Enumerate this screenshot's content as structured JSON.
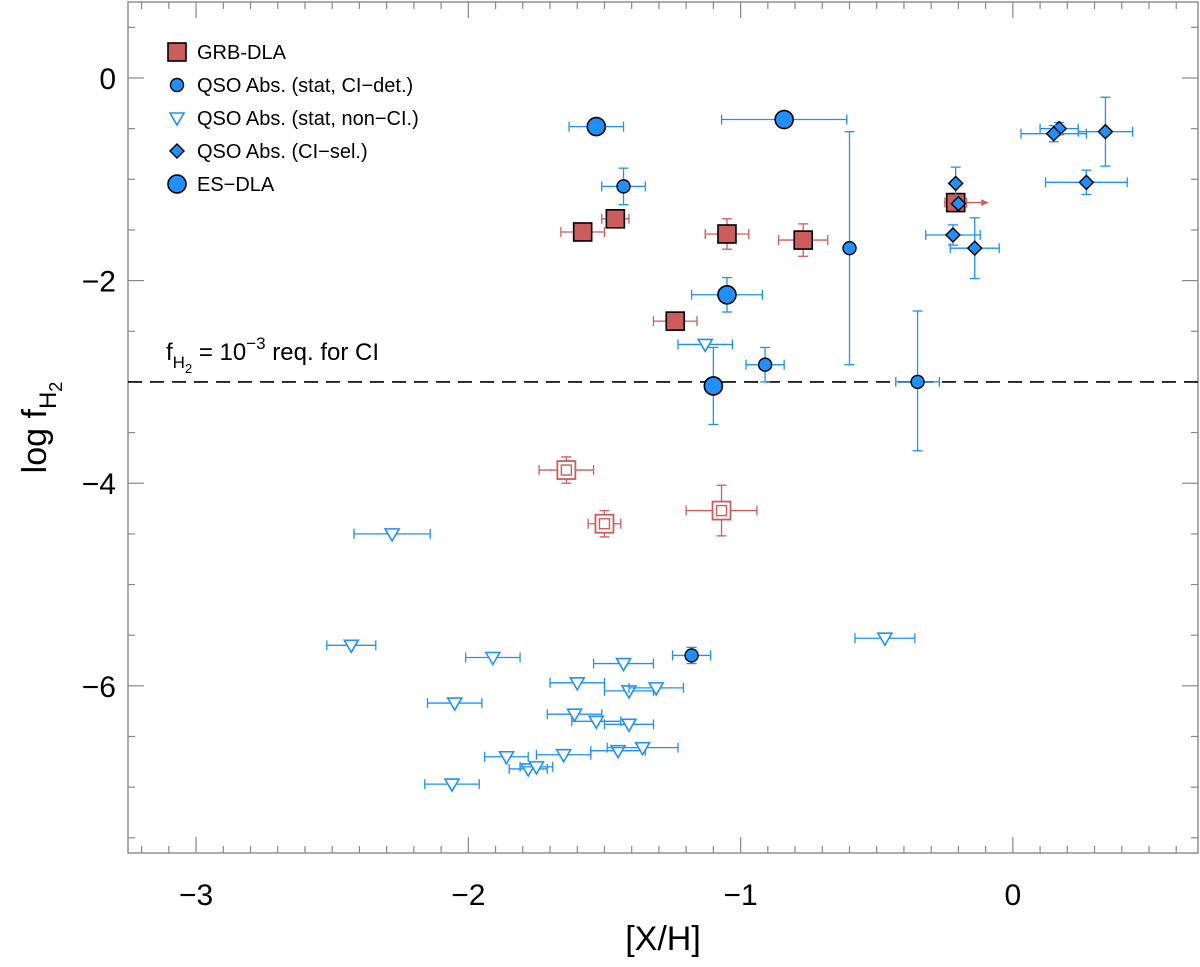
{
  "chart_data": {
    "type": "scatter",
    "title": "",
    "xlabel": "[X/H]",
    "ylabel": "log f_H2",
    "xlim": [
      -3.25,
      0.68
    ],
    "ylim": [
      -7.65,
      0.75
    ],
    "x_ticks": [
      {
        "v": -3,
        "label": "−3"
      },
      {
        "v": -2,
        "label": "−2"
      },
      {
        "v": -1,
        "label": "−1"
      },
      {
        "v": 0,
        "label": "0"
      }
    ],
    "y_ticks": [
      {
        "v": 0,
        "label": "0"
      },
      {
        "v": -2,
        "label": "−2"
      },
      {
        "v": -4,
        "label": "−4"
      },
      {
        "v": -6,
        "label": "−6"
      }
    ],
    "annotation": {
      "y": -3,
      "label_prefix": "f",
      "label_sub": "H2",
      "label_mid": " = 10",
      "label_sup": "−3",
      "label_suffix": " req. for CI"
    },
    "legend_position": "top-left",
    "colors": {
      "grb": "#cd5c5c",
      "qso": "#1e90ff",
      "qso_fill": "#1e90ff",
      "outline": "#000000"
    },
    "legend": [
      {
        "name": "GRB-DLA",
        "marker": "square"
      },
      {
        "name": "QSO Abs. (stat, CI−det.)",
        "marker": "circle"
      },
      {
        "name": "QSO Abs. (stat, non−CI.)",
        "marker": "triangle"
      },
      {
        "name": "QSO Abs. (CI−sel.)",
        "marker": "diamond"
      },
      {
        "name": "ES−DLA",
        "marker": "bigcircle"
      }
    ],
    "series": [
      {
        "name": "GRB-DLA",
        "marker": "square",
        "filled": true,
        "points": [
          {
            "x": -1.58,
            "y": -1.52,
            "xe": 0.08,
            "ye": 0.08
          },
          {
            "x": -1.46,
            "y": -1.39,
            "xe": 0.05,
            "ye": 0.07
          },
          {
            "x": -1.05,
            "y": -1.54,
            "xe": 0.08,
            "ye": 0.15
          },
          {
            "x": -0.77,
            "y": -1.6,
            "xe": 0.09,
            "ye": 0.16
          },
          {
            "x": -1.24,
            "y": -2.4,
            "xe": 0.08,
            "ye": 0.07
          },
          {
            "x": -0.21,
            "y": -1.23,
            "xe": 0.04,
            "ye": 0.09,
            "arrow": "right"
          }
        ]
      },
      {
        "name": "GRB-DLA (limits)",
        "marker": "square",
        "filled": false,
        "points": [
          {
            "x": -1.64,
            "y": -3.87,
            "xe": 0.1,
            "ye": 0.13
          },
          {
            "x": -1.5,
            "y": -4.4,
            "xe": 0.06,
            "ye": 0.13
          },
          {
            "x": -1.07,
            "y": -4.27,
            "xe": 0.13,
            "ye": 0.25
          }
        ]
      },
      {
        "name": "QSO Abs. (stat, CI-det.)",
        "marker": "circle",
        "filled": true,
        "points": [
          {
            "x": -1.43,
            "y": -1.07,
            "xe": 0.08,
            "ye": 0.18
          },
          {
            "x": -0.6,
            "y": -1.68,
            "xe": 0.0,
            "ye_up": 1.15,
            "ye_dn": 1.15
          },
          {
            "x": -0.91,
            "y": -2.83,
            "xe": 0.07,
            "ye": 0.17
          },
          {
            "x": -0.35,
            "y": -3.0,
            "xe": 0.08,
            "ye_up": 0.7,
            "ye_dn": 0.68
          },
          {
            "x": -1.18,
            "y": -5.7,
            "xe": 0.07,
            "ye": 0.08
          }
        ]
      },
      {
        "name": "QSO Abs. (stat, non-CI.)",
        "marker": "triangle",
        "filled": false,
        "points": [
          {
            "x": -1.13,
            "y": -2.63,
            "xe": 0.1,
            "ye": 0
          },
          {
            "x": -2.28,
            "y": -4.5,
            "xe": 0.14,
            "ye": 0
          },
          {
            "x": -2.43,
            "y": -5.6,
            "xe": 0.09,
            "ye": 0
          },
          {
            "x": -1.91,
            "y": -5.72,
            "xe": 0.1,
            "ye": 0
          },
          {
            "x": -2.05,
            "y": -6.17,
            "xe": 0.1,
            "ye": 0
          },
          {
            "x": -1.6,
            "y": -5.97,
            "xe": 0.1,
            "ye": 0
          },
          {
            "x": -1.43,
            "y": -5.78,
            "xe": 0.11,
            "ye": 0
          },
          {
            "x": -1.41,
            "y": -6.05,
            "xe": 0.09,
            "ye": 0
          },
          {
            "x": -1.31,
            "y": -6.02,
            "xe": 0.1,
            "ye": 0
          },
          {
            "x": -1.61,
            "y": -6.28,
            "xe": 0.1,
            "ye": 0
          },
          {
            "x": -1.53,
            "y": -6.35,
            "xe": 0.09,
            "ye": 0
          },
          {
            "x": -1.41,
            "y": -6.38,
            "xe": 0.09,
            "ye": 0
          },
          {
            "x": -1.86,
            "y": -6.7,
            "xe": 0.08,
            "ye": 0
          },
          {
            "x": -1.65,
            "y": -6.68,
            "xe": 0.1,
            "ye": 0
          },
          {
            "x": -1.45,
            "y": -6.64,
            "xe": 0.1,
            "ye": 0
          },
          {
            "x": -1.36,
            "y": -6.61,
            "xe": 0.13,
            "ye": 0
          },
          {
            "x": -1.78,
            "y": -6.82,
            "xe": 0.07,
            "ye": 0
          },
          {
            "x": -1.75,
            "y": -6.8,
            "xe": 0.06,
            "ye": 0
          },
          {
            "x": -2.06,
            "y": -6.97,
            "xe": 0.1,
            "ye": 0
          },
          {
            "x": -0.47,
            "y": -5.53,
            "xe": 0.11,
            "ye": 0
          }
        ]
      },
      {
        "name": "QSO Abs. (CI-sel.)",
        "marker": "diamond",
        "filled": true,
        "points": [
          {
            "x": -0.21,
            "y": -1.04,
            "xe": 0.0,
            "ye": 0.16
          },
          {
            "x": -0.2,
            "y": -1.24,
            "xe": 0.0,
            "ye": 0.0
          },
          {
            "x": -0.22,
            "y": -1.55,
            "xe": 0.1,
            "ye": 0.1
          },
          {
            "x": -0.14,
            "y": -1.68,
            "xe": 0.09,
            "ye": 0.3
          },
          {
            "x": 0.17,
            "y": -0.5,
            "xe": 0.07,
            "ye": 0.06
          },
          {
            "x": 0.15,
            "y": -0.55,
            "xe": 0.12,
            "ye": 0.08
          },
          {
            "x": 0.34,
            "y": -0.53,
            "xe": 0.1,
            "ye": 0.34
          },
          {
            "x": 0.27,
            "y": -1.03,
            "xe": 0.15,
            "ye": 0.12
          }
        ]
      },
      {
        "name": "ES-DLA",
        "marker": "bigcircle",
        "filled": true,
        "points": [
          {
            "x": -1.53,
            "y": -0.48,
            "xe": 0.1,
            "ye": 0.06
          },
          {
            "x": -0.84,
            "y": -0.41,
            "xe": 0.23,
            "ye": 0.0
          },
          {
            "x": -1.05,
            "y": -2.14,
            "xe": 0.13,
            "ye": 0.17
          },
          {
            "x": -1.1,
            "y": -3.04,
            "xe": 0.0,
            "ye": 0.38
          }
        ]
      }
    ]
  }
}
